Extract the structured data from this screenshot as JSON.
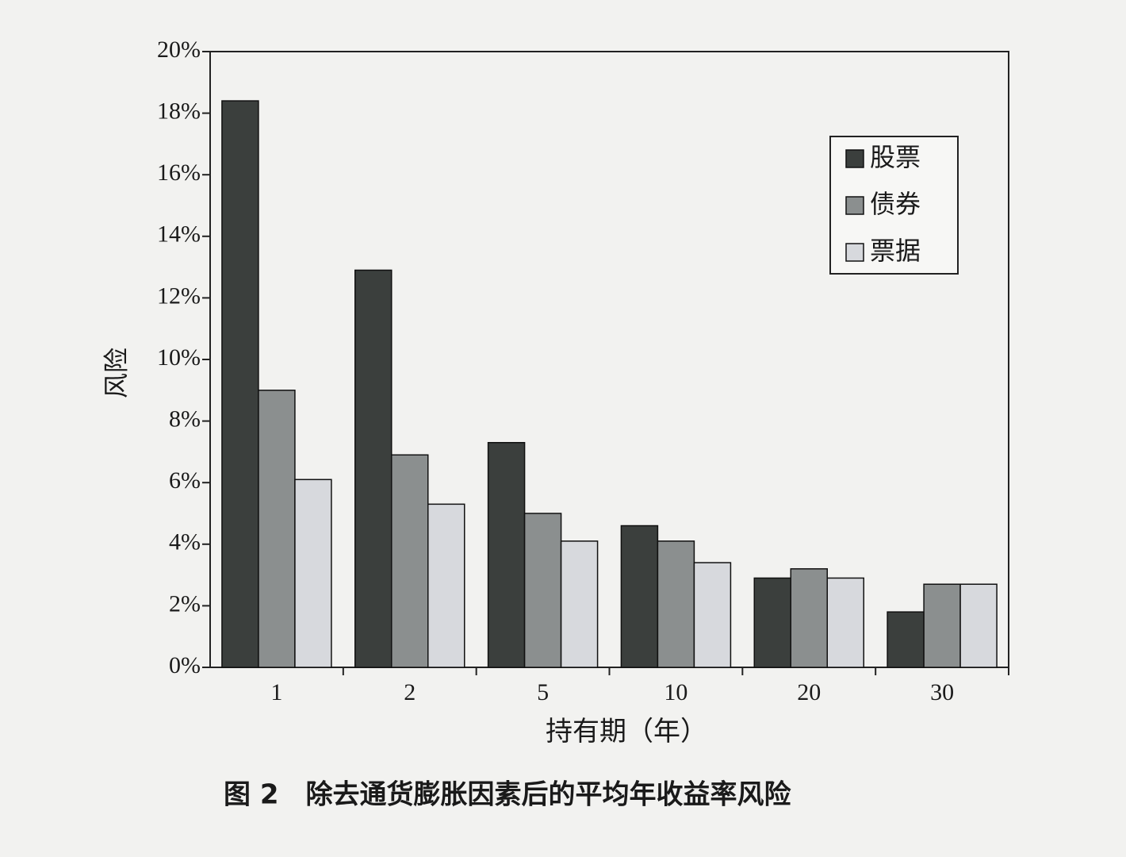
{
  "chart_data": {
    "type": "bar",
    "caption": "图 2　除去通货膨胀因素后的平均年收益率风险",
    "x_label": "持有期（年）",
    "y_label": "风险",
    "categories": [
      "1",
      "2",
      "5",
      "10",
      "20",
      "30"
    ],
    "series": [
      {
        "name": "股票",
        "color": "#3b3f3d",
        "values": [
          18.4,
          12.9,
          7.3,
          4.6,
          2.9,
          1.8
        ]
      },
      {
        "name": "债券",
        "color": "#8b8f8f",
        "values": [
          9.0,
          6.9,
          5.0,
          4.1,
          3.2,
          2.7
        ]
      },
      {
        "name": "票据",
        "color": "#d7d9dd",
        "values": [
          6.1,
          5.3,
          4.1,
          3.4,
          2.9,
          2.7
        ]
      }
    ],
    "ylim": [
      0,
      20
    ],
    "yticks": [
      {
        "value": 0,
        "label": "0%"
      },
      {
        "value": 2,
        "label": "2%"
      },
      {
        "value": 4,
        "label": "4%"
      },
      {
        "value": 6,
        "label": "6%"
      },
      {
        "value": 8,
        "label": "8%"
      },
      {
        "value": 10,
        "label": "10%"
      },
      {
        "value": 12,
        "label": "12%"
      },
      {
        "value": 14,
        "label": "14%"
      },
      {
        "value": 16,
        "label": "16%"
      },
      {
        "value": 18,
        "label": "18%"
      },
      {
        "value": 20,
        "label": "20%"
      }
    ],
    "legend": "upper right"
  }
}
